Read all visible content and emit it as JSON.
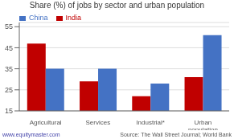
{
  "chart_data": {
    "type": "bar",
    "title": "Share (%) of jobs by sector and urban population",
    "categories": [
      "Agricultural",
      "Services",
      "Industrial*",
      "Urban\npopulation"
    ],
    "series": [
      {
        "name": "India",
        "color": "#c00000",
        "values": [
          47,
          29,
          22,
          31
        ]
      },
      {
        "name": "China",
        "color": "#4472c4",
        "values": [
          35,
          35,
          28,
          51
        ]
      }
    ],
    "ylim": [
      15,
      57
    ],
    "yticks": [
      15,
      25,
      35,
      45,
      55
    ],
    "grid": true,
    "legend": "upper left",
    "annotations": [
      "www.equitymaster.com",
      "Source: The Wall Street Journal; World Bank"
    ]
  }
}
